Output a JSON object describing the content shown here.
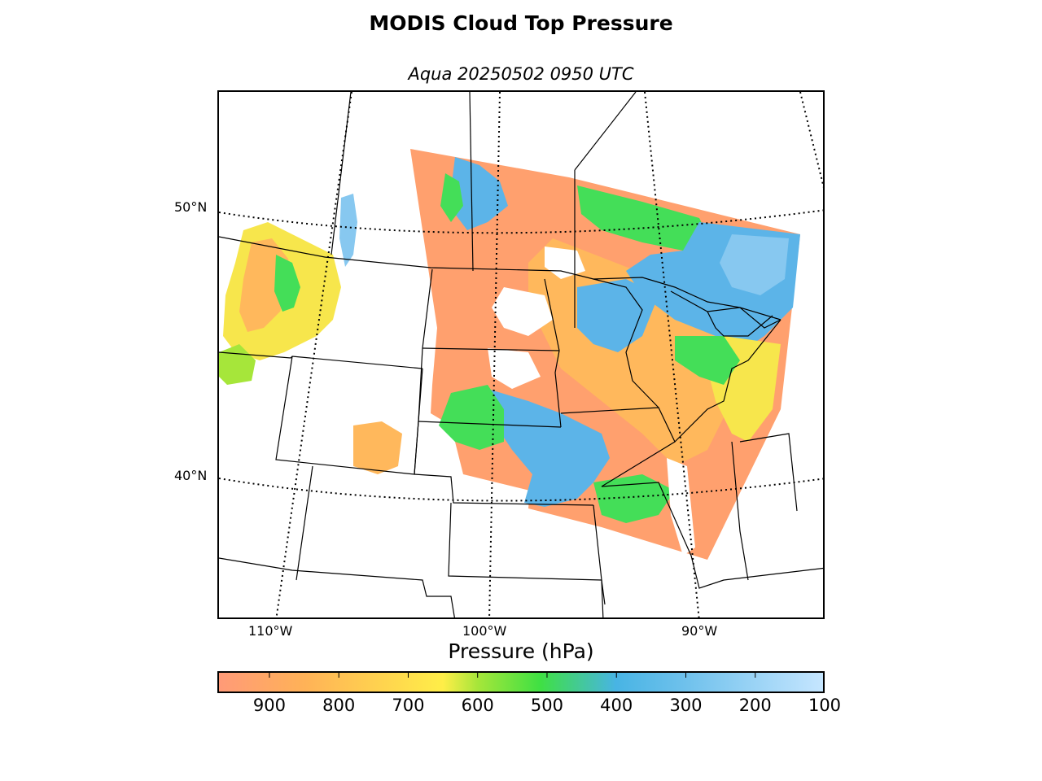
{
  "title": "MODIS Cloud Top Pressure",
  "subtitle": "Aqua 20250502 0950 UTC",
  "map": {
    "region": "North-central United States and south-central Canada",
    "projection": "Lambert conformal",
    "latitude_labels": [
      "50°N",
      "40°N"
    ],
    "longitude_labels": [
      "110°W",
      "100°W",
      "90°W"
    ],
    "graticule_style": "dotted"
  },
  "colorbar": {
    "title": "Pressure (hPa)",
    "range_hpa": [
      975,
      100
    ],
    "tick_labels": [
      "900",
      "800",
      "700",
      "600",
      "500",
      "400",
      "300",
      "200",
      "100"
    ],
    "color_stops": [
      {
        "hpa": 975,
        "color": "#ff9a78"
      },
      {
        "hpa": 850,
        "color": "#ffb257"
      },
      {
        "hpa": 650,
        "color": "#ffee48"
      },
      {
        "hpa": 600,
        "color": "#a6e63a"
      },
      {
        "hpa": 510,
        "color": "#3fe043"
      },
      {
        "hpa": 400,
        "color": "#48b4e4"
      },
      {
        "hpa": 300,
        "color": "#6fc1ec"
      },
      {
        "hpa": 100,
        "color": "#c6e6ff"
      }
    ]
  },
  "colors": {
    "low_cloud": "#ffa06e",
    "mid_low_cloud": "#ffb85c",
    "mid_cloud": "#f7e64c",
    "mid_high_cloud": "#44de58",
    "high_cloud": "#5cb4e8",
    "very_high_cloud": "#87c8f0"
  }
}
